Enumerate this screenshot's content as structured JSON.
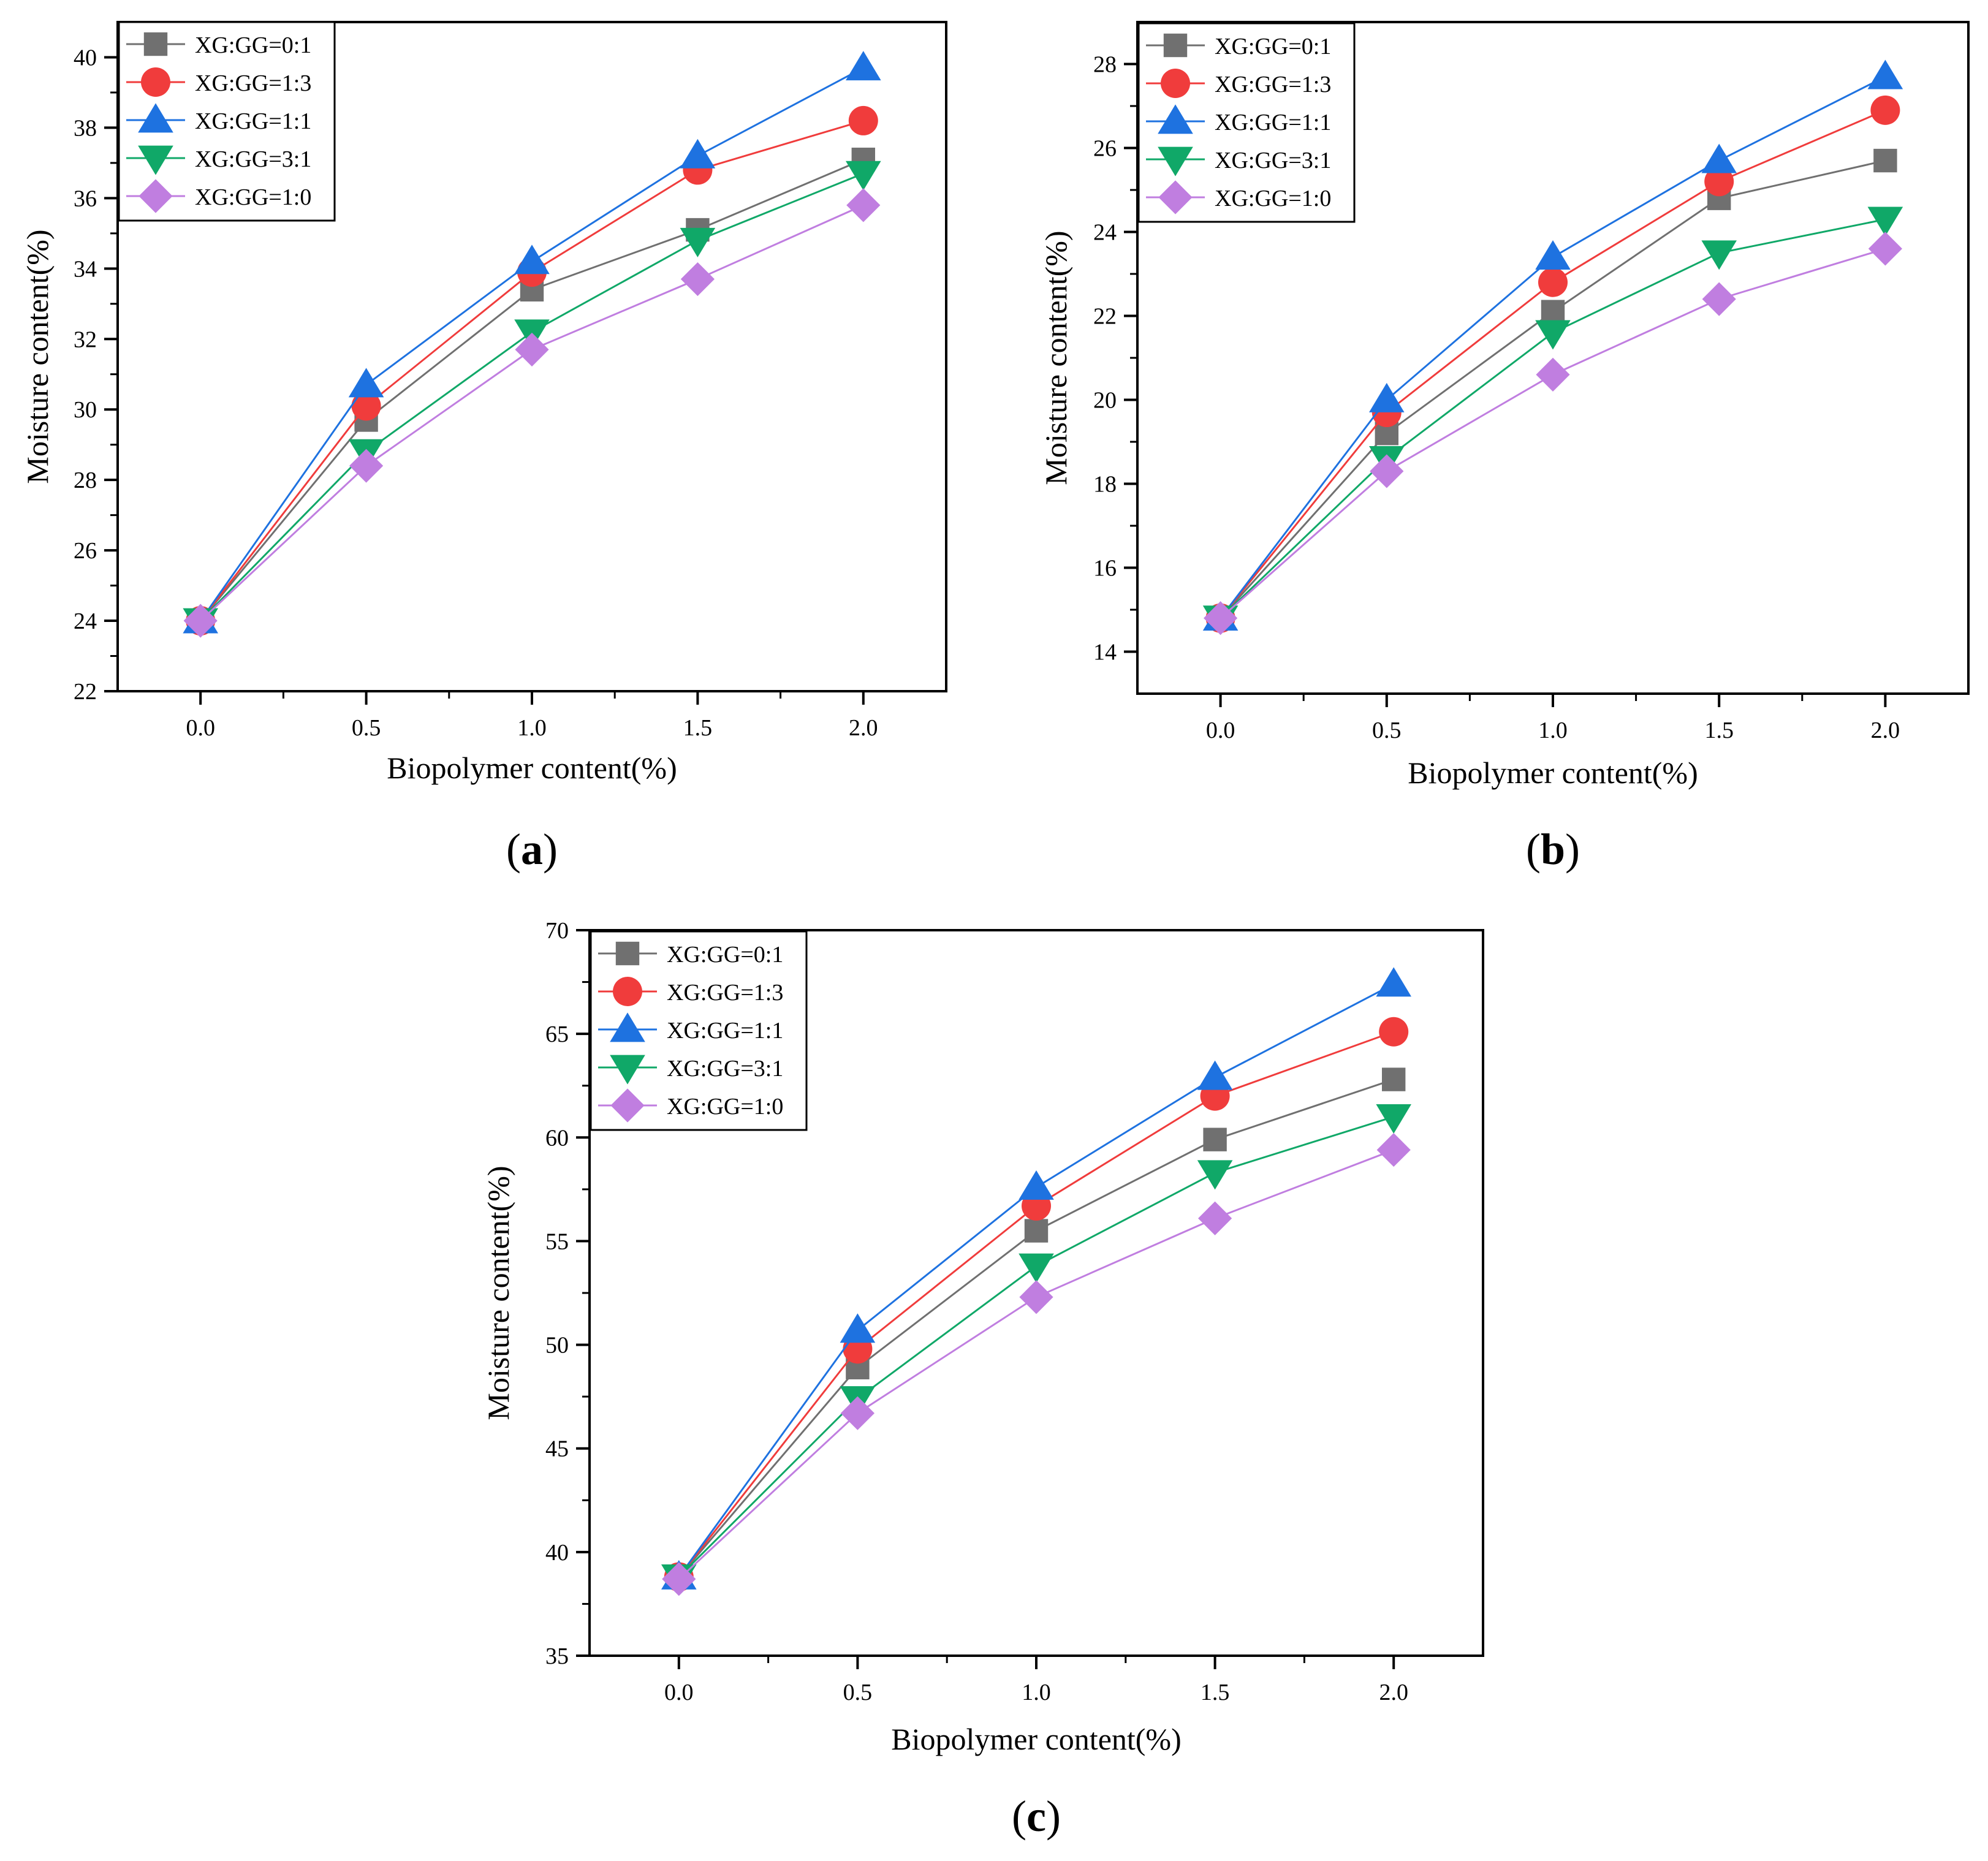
{
  "legend": [
    "XG:GG=0:1",
    "XG:GG=1:3",
    "XG:GG=1:1",
    "XG:GG=3:1",
    "XG:GG=1:0"
  ],
  "series_styles": [
    {
      "color": "#707070",
      "marker": "square"
    },
    {
      "color": "#f03c3c",
      "marker": "circle"
    },
    {
      "color": "#1e72e0",
      "marker": "triangle-up"
    },
    {
      "color": "#10a868",
      "marker": "triangle-down"
    },
    {
      "color": "#c07ee0",
      "marker": "diamond"
    }
  ],
  "chart_data": [
    {
      "type": "line",
      "id": "a",
      "caption": "a",
      "xlabel": "Biopolymer content(%)",
      "ylabel": "Moisture content(%)",
      "x": [
        0.0,
        0.5,
        1.0,
        1.5,
        2.0
      ],
      "x_ticks": [
        "0.0",
        "0.5",
        "1.0",
        "1.5",
        "2.0"
      ],
      "xlim": [
        -0.25,
        2.25
      ],
      "ylim": [
        22,
        41
      ],
      "y_ticks": [
        22,
        24,
        26,
        28,
        30,
        32,
        34,
        36,
        38,
        40
      ],
      "legend_position": "top-left",
      "series": [
        {
          "name": "XG:GG=0:1",
          "values": [
            24.0,
            29.7,
            33.4,
            35.1,
            37.1
          ]
        },
        {
          "name": "XG:GG=1:3",
          "values": [
            24.0,
            30.1,
            33.9,
            36.8,
            38.2
          ]
        },
        {
          "name": "XG:GG=1:1",
          "values": [
            24.0,
            30.7,
            34.2,
            37.2,
            39.7
          ]
        },
        {
          "name": "XG:GG=3:1",
          "values": [
            24.0,
            28.8,
            32.2,
            34.8,
            36.7
          ]
        },
        {
          "name": "XG:GG=1:0",
          "values": [
            24.0,
            28.4,
            31.7,
            33.7,
            35.8
          ]
        }
      ]
    },
    {
      "type": "line",
      "id": "b",
      "caption": "b",
      "xlabel": "Biopolymer content(%)",
      "ylabel": "Moisture content(%)",
      "x": [
        0.0,
        0.5,
        1.0,
        1.5,
        2.0
      ],
      "x_ticks": [
        "0.0",
        "0.5",
        "1.0",
        "1.5",
        "2.0"
      ],
      "xlim": [
        -0.25,
        2.25
      ],
      "ylim": [
        13,
        29
      ],
      "y_ticks": [
        14,
        16,
        18,
        20,
        22,
        24,
        26,
        28
      ],
      "legend_position": "top-left",
      "series": [
        {
          "name": "XG:GG=0:1",
          "values": [
            14.8,
            19.2,
            22.1,
            24.8,
            25.7
          ]
        },
        {
          "name": "XG:GG=1:3",
          "values": [
            14.8,
            19.7,
            22.8,
            25.2,
            26.9
          ]
        },
        {
          "name": "XG:GG=1:1",
          "values": [
            14.8,
            20.0,
            23.4,
            25.7,
            27.7
          ]
        },
        {
          "name": "XG:GG=3:1",
          "values": [
            14.8,
            18.6,
            21.6,
            23.5,
            24.3
          ]
        },
        {
          "name": "XG:GG=1:0",
          "values": [
            14.8,
            18.3,
            20.6,
            22.4,
            23.6
          ]
        }
      ]
    },
    {
      "type": "line",
      "id": "c",
      "caption": "c",
      "xlabel": "Biopolymer content(%)",
      "ylabel": "Moisture content(%)",
      "x": [
        0.0,
        0.5,
        1.0,
        1.5,
        2.0
      ],
      "x_ticks": [
        "0.0",
        "0.5",
        "1.0",
        "1.5",
        "2.0"
      ],
      "xlim": [
        -0.25,
        2.25
      ],
      "ylim": [
        35,
        70
      ],
      "y_ticks": [
        35,
        40,
        45,
        50,
        55,
        60,
        65,
        70
      ],
      "legend_position": "top-left",
      "series": [
        {
          "name": "XG:GG=0:1",
          "values": [
            38.8,
            48.9,
            55.5,
            59.9,
            62.8
          ]
        },
        {
          "name": "XG:GG=1:3",
          "values": [
            38.8,
            49.8,
            56.7,
            62.0,
            65.1
          ]
        },
        {
          "name": "XG:GG=1:1",
          "values": [
            38.8,
            50.7,
            57.6,
            62.9,
            67.4
          ]
        },
        {
          "name": "XG:GG=3:1",
          "values": [
            38.8,
            47.4,
            53.8,
            58.3,
            61.0
          ]
        },
        {
          "name": "XG:GG=1:0",
          "values": [
            38.7,
            46.7,
            52.3,
            56.1,
            59.4
          ]
        }
      ]
    }
  ]
}
